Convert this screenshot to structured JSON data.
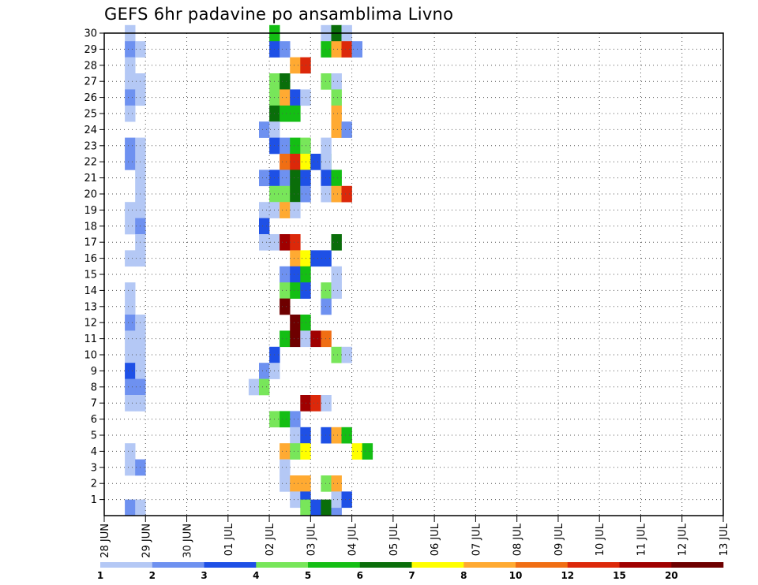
{
  "chart_data": {
    "type": "heatmap",
    "title": "GEFS 6hr padavine po ansamblima Livno",
    "xlabel": "",
    "ylabel": "",
    "x_ticks": [
      "28 JUN",
      "29 JUN",
      "30 JUN",
      "01 JUL",
      "02 JUL",
      "03 JUL",
      "04 JUL",
      "05 JUL",
      "06 JUL",
      "07 JUL",
      "08 JUL",
      "09 JUL",
      "10 JUL",
      "11 JUL",
      "12 JUL",
      "13 JUL"
    ],
    "y_ticks": [
      1,
      2,
      3,
      4,
      5,
      6,
      7,
      8,
      9,
      10,
      11,
      12,
      13,
      14,
      15,
      16,
      17,
      18,
      19,
      20,
      21,
      22,
      23,
      24,
      25,
      26,
      27,
      28,
      29,
      30
    ],
    "ylim": [
      0,
      30
    ],
    "grid": true,
    "legend": {
      "placement": "bottom",
      "thresholds": [
        "1",
        "2",
        "3",
        "4",
        "5",
        "6",
        "7",
        "8",
        "10",
        "12",
        "15",
        "20"
      ],
      "colors": [
        "#b4c8f5",
        "#6e91f0",
        "#1e50e6",
        "#78e65a",
        "#14be14",
        "#0a6e0a",
        "#ffff00",
        "#ffaa32",
        "#f06e14",
        "#dc280a",
        "#a00000",
        "#6e0000"
      ]
    },
    "cells": [
      [
        "28 JUN 12Z",
        1,
        30
      ],
      [
        "28 JUN 12Z",
        2,
        29
      ],
      [
        "28 JUN 18Z",
        1,
        29
      ],
      [
        "28 JUN 12Z",
        1,
        28
      ],
      [
        "28 JUN 12Z",
        1,
        27
      ],
      [
        "28 JUN 18Z",
        1,
        27
      ],
      [
        "28 JUN 12Z",
        2,
        26
      ],
      [
        "28 JUN 18Z",
        1,
        26
      ],
      [
        "28 JUN 12Z",
        1,
        25
      ],
      [
        "28 JUN 12Z",
        2,
        23
      ],
      [
        "28 JUN 18Z",
        1,
        23
      ],
      [
        "28 JUN 12Z",
        2,
        22
      ],
      [
        "28 JUN 18Z",
        1,
        22
      ],
      [
        "28 JUN 18Z",
        1,
        21
      ],
      [
        "28 JUN 18Z",
        1,
        20
      ],
      [
        "28 JUN 18Z",
        1,
        19
      ],
      [
        "28 JUN 12Z",
        1,
        19
      ],
      [
        "28 JUN 12Z",
        1,
        18
      ],
      [
        "28 JUN 18Z",
        2,
        18
      ],
      [
        "28 JUN 18Z",
        1,
        17
      ],
      [
        "28 JUN 12Z",
        1,
        16
      ],
      [
        "28 JUN 18Z",
        1,
        16
      ],
      [
        "28 JUN 12Z",
        1,
        14
      ],
      [
        "28 JUN 12Z",
        1,
        13
      ],
      [
        "28 JUN 12Z",
        2,
        12
      ],
      [
        "28 JUN 18Z",
        1,
        12
      ],
      [
        "28 JUN 12Z",
        1,
        11
      ],
      [
        "28 JUN 18Z",
        1,
        11
      ],
      [
        "28 JUN 12Z",
        1,
        10
      ],
      [
        "28 JUN 18Z",
        1,
        10
      ],
      [
        "28 JUN 12Z",
        3,
        9
      ],
      [
        "28 JUN 18Z",
        1,
        9
      ],
      [
        "28 JUN 12Z",
        2,
        8
      ],
      [
        "28 JUN 18Z",
        2,
        8
      ],
      [
        "28 JUN 12Z",
        1,
        7
      ],
      [
        "28 JUN 18Z",
        1,
        7
      ],
      [
        "28 JUN 12Z",
        1,
        4
      ],
      [
        "28 JUN 12Z",
        1,
        3
      ],
      [
        "28 JUN 18Z",
        2,
        3
      ],
      [
        "28 JUN 12Z",
        2,
        0.5
      ],
      [
        "28 JUN 18Z",
        1,
        0.5
      ],
      [
        "02 JUL 00Z",
        5,
        30
      ],
      [
        "02 JUL 00Z",
        3,
        29
      ],
      [
        "02 JUL 06Z",
        2,
        29
      ],
      [
        "02 JUL 12Z",
        8,
        28
      ],
      [
        "02 JUL 18Z",
        10,
        28
      ],
      [
        "02 JUL 00Z",
        4,
        27
      ],
      [
        "02 JUL 06Z",
        6,
        27
      ],
      [
        "02 JUL 00Z",
        4,
        26
      ],
      [
        "02 JUL 06Z",
        8,
        26
      ],
      [
        "02 JUL 12Z",
        3,
        26
      ],
      [
        "02 JUL 18Z",
        1,
        26
      ],
      [
        "02 JUL 00Z",
        6,
        25
      ],
      [
        "02 JUL 06Z",
        5,
        25
      ],
      [
        "02 JUL 12Z",
        5,
        25
      ],
      [
        "01 JUL 18Z",
        2,
        24
      ],
      [
        "02 JUL 00Z",
        1,
        24
      ],
      [
        "02 JUL 00Z",
        3,
        23
      ],
      [
        "02 JUL 06Z",
        2,
        23
      ],
      [
        "02 JUL 12Z",
        5,
        23
      ],
      [
        "02 JUL 18Z",
        4,
        23
      ],
      [
        "02 JUL 06Z",
        9,
        22
      ],
      [
        "02 JUL 12Z",
        10,
        22
      ],
      [
        "02 JUL 18Z",
        7,
        22
      ],
      [
        "03 JUL 00Z",
        3,
        22
      ],
      [
        "03 JUL 06Z",
        4,
        22
      ],
      [
        "01 JUL 18Z",
        2,
        21
      ],
      [
        "02 JUL 00Z",
        3,
        21
      ],
      [
        "02 JUL 06Z",
        2,
        21
      ],
      [
        "02 JUL 12Z",
        6,
        21
      ],
      [
        "02 JUL 18Z",
        3,
        21
      ],
      [
        "02 JUL 00Z",
        4,
        20
      ],
      [
        "02 JUL 06Z",
        4,
        20
      ],
      [
        "02 JUL 12Z",
        6,
        20
      ],
      [
        "02 JUL 18Z",
        2,
        20
      ],
      [
        "01 JUL 18Z",
        1,
        19
      ],
      [
        "02 JUL 00Z",
        1,
        19
      ],
      [
        "02 JUL 06Z",
        8,
        19
      ],
      [
        "02 JUL 12Z",
        1,
        19
      ],
      [
        "01 JUL 18Z",
        3,
        18
      ],
      [
        "01 JUL 18Z",
        1,
        17
      ],
      [
        "02 JUL 00Z",
        1,
        17
      ],
      [
        "02 JUL 06Z",
        11,
        17
      ],
      [
        "02 JUL 12Z",
        10,
        17
      ],
      [
        "02 JUL 12Z",
        8,
        16
      ],
      [
        "02 JUL 18Z",
        7,
        16
      ],
      [
        "03 JUL 00Z",
        3,
        16
      ],
      [
        "03 JUL 06Z",
        3,
        16
      ],
      [
        "02 JUL 06Z",
        2,
        15
      ],
      [
        "02 JUL 12Z",
        3,
        15
      ],
      [
        "02 JUL 18Z",
        5,
        15
      ],
      [
        "02 JUL 06Z",
        4,
        14
      ],
      [
        "02 JUL 12Z",
        5,
        14
      ],
      [
        "02 JUL 18Z",
        3,
        14
      ],
      [
        "02 JUL 06Z",
        12,
        13
      ],
      [
        "02 JUL 12Z",
        12,
        12
      ],
      [
        "02 JUL 18Z",
        5,
        12
      ],
      [
        "02 JUL 06Z",
        5,
        11
      ],
      [
        "02 JUL 12Z",
        12,
        11
      ],
      [
        "02 JUL 18Z",
        1,
        11
      ],
      [
        "03 JUL 00Z",
        11,
        11
      ],
      [
        "03 JUL 06Z",
        9,
        11
      ],
      [
        "02 JUL 00Z",
        3,
        10
      ],
      [
        "01 JUL 18Z",
        2,
        9
      ],
      [
        "02 JUL 00Z",
        1,
        9
      ],
      [
        "01 JUL 12Z",
        1,
        8
      ],
      [
        "01 JUL 18Z",
        4,
        8
      ],
      [
        "02 JUL 18Z",
        11,
        7
      ],
      [
        "03 JUL 00Z",
        10,
        7
      ],
      [
        "03 JUL 06Z",
        1,
        7
      ],
      [
        "02 JUL 00Z",
        4,
        6
      ],
      [
        "02 JUL 06Z",
        5,
        6
      ],
      [
        "02 JUL 12Z",
        2,
        6
      ],
      [
        "02 JUL 12Z",
        1,
        5
      ],
      [
        "02 JUL 18Z",
        3,
        5
      ],
      [
        "02 JUL 06Z",
        8,
        4
      ],
      [
        "02 JUL 12Z",
        4,
        4
      ],
      [
        "02 JUL 18Z",
        7,
        4
      ],
      [
        "02 JUL 06Z",
        1,
        3
      ],
      [
        "02 JUL 06Z",
        1,
        2
      ],
      [
        "02 JUL 12Z",
        8,
        2
      ],
      [
        "02 JUL 18Z",
        8,
        2
      ],
      [
        "02 JUL 12Z",
        1,
        1
      ],
      [
        "02 JUL 18Z",
        3,
        1
      ],
      [
        "02 JUL 18Z",
        4,
        0.5
      ],
      [
        "03 JUL 00Z",
        3,
        0.5
      ],
      [
        "03 JUL 06Z",
        6,
        0.5
      ],
      [
        "03 JUL 12Z",
        2,
        0.5
      ],
      [
        "03 JUL 06Z",
        1,
        30
      ],
      [
        "03 JUL 12Z",
        6,
        30
      ],
      [
        "03 JUL 18Z",
        1,
        30
      ],
      [
        "03 JUL 06Z",
        5,
        29
      ],
      [
        "03 JUL 12Z",
        8,
        29
      ],
      [
        "03 JUL 18Z",
        10,
        29
      ],
      [
        "04 JUL 00Z",
        2,
        29
      ],
      [
        "03 JUL 06Z",
        4,
        27
      ],
      [
        "03 JUL 12Z",
        1,
        27
      ],
      [
        "03 JUL 12Z",
        4,
        26
      ],
      [
        "03 JUL 12Z",
        8,
        25
      ],
      [
        "03 JUL 12Z",
        8,
        24
      ],
      [
        "03 JUL 18Z",
        2,
        24
      ],
      [
        "03 JUL 06Z",
        1,
        23
      ],
      [
        "03 JUL 06Z",
        1,
        22
      ],
      [
        "03 JUL 06Z",
        3,
        21
      ],
      [
        "03 JUL 12Z",
        5,
        21
      ],
      [
        "03 JUL 06Z",
        1,
        20
      ],
      [
        "03 JUL 12Z",
        8,
        20
      ],
      [
        "03 JUL 18Z",
        10,
        20
      ],
      [
        "03 JUL 12Z",
        6,
        17
      ],
      [
        "03 JUL 12Z",
        1,
        15
      ],
      [
        "03 JUL 06Z",
        4,
        14
      ],
      [
        "03 JUL 12Z",
        1,
        14
      ],
      [
        "03 JUL 06Z",
        2,
        13
      ],
      [
        "03 JUL 12Z",
        4,
        10
      ],
      [
        "03 JUL 18Z",
        1,
        10
      ],
      [
        "03 JUL 06Z",
        3,
        5
      ],
      [
        "03 JUL 12Z",
        8,
        5
      ],
      [
        "03 JUL 18Z",
        5,
        5
      ],
      [
        "03 JUL 06Z",
        4,
        2
      ],
      [
        "03 JUL 12Z",
        8,
        2
      ],
      [
        "03 JUL 12Z",
        1,
        1
      ],
      [
        "03 JUL 18Z",
        3,
        1
      ],
      [
        "04 JUL 00Z",
        7,
        4
      ],
      [
        "04 JUL 06Z",
        5,
        4
      ]
    ]
  }
}
